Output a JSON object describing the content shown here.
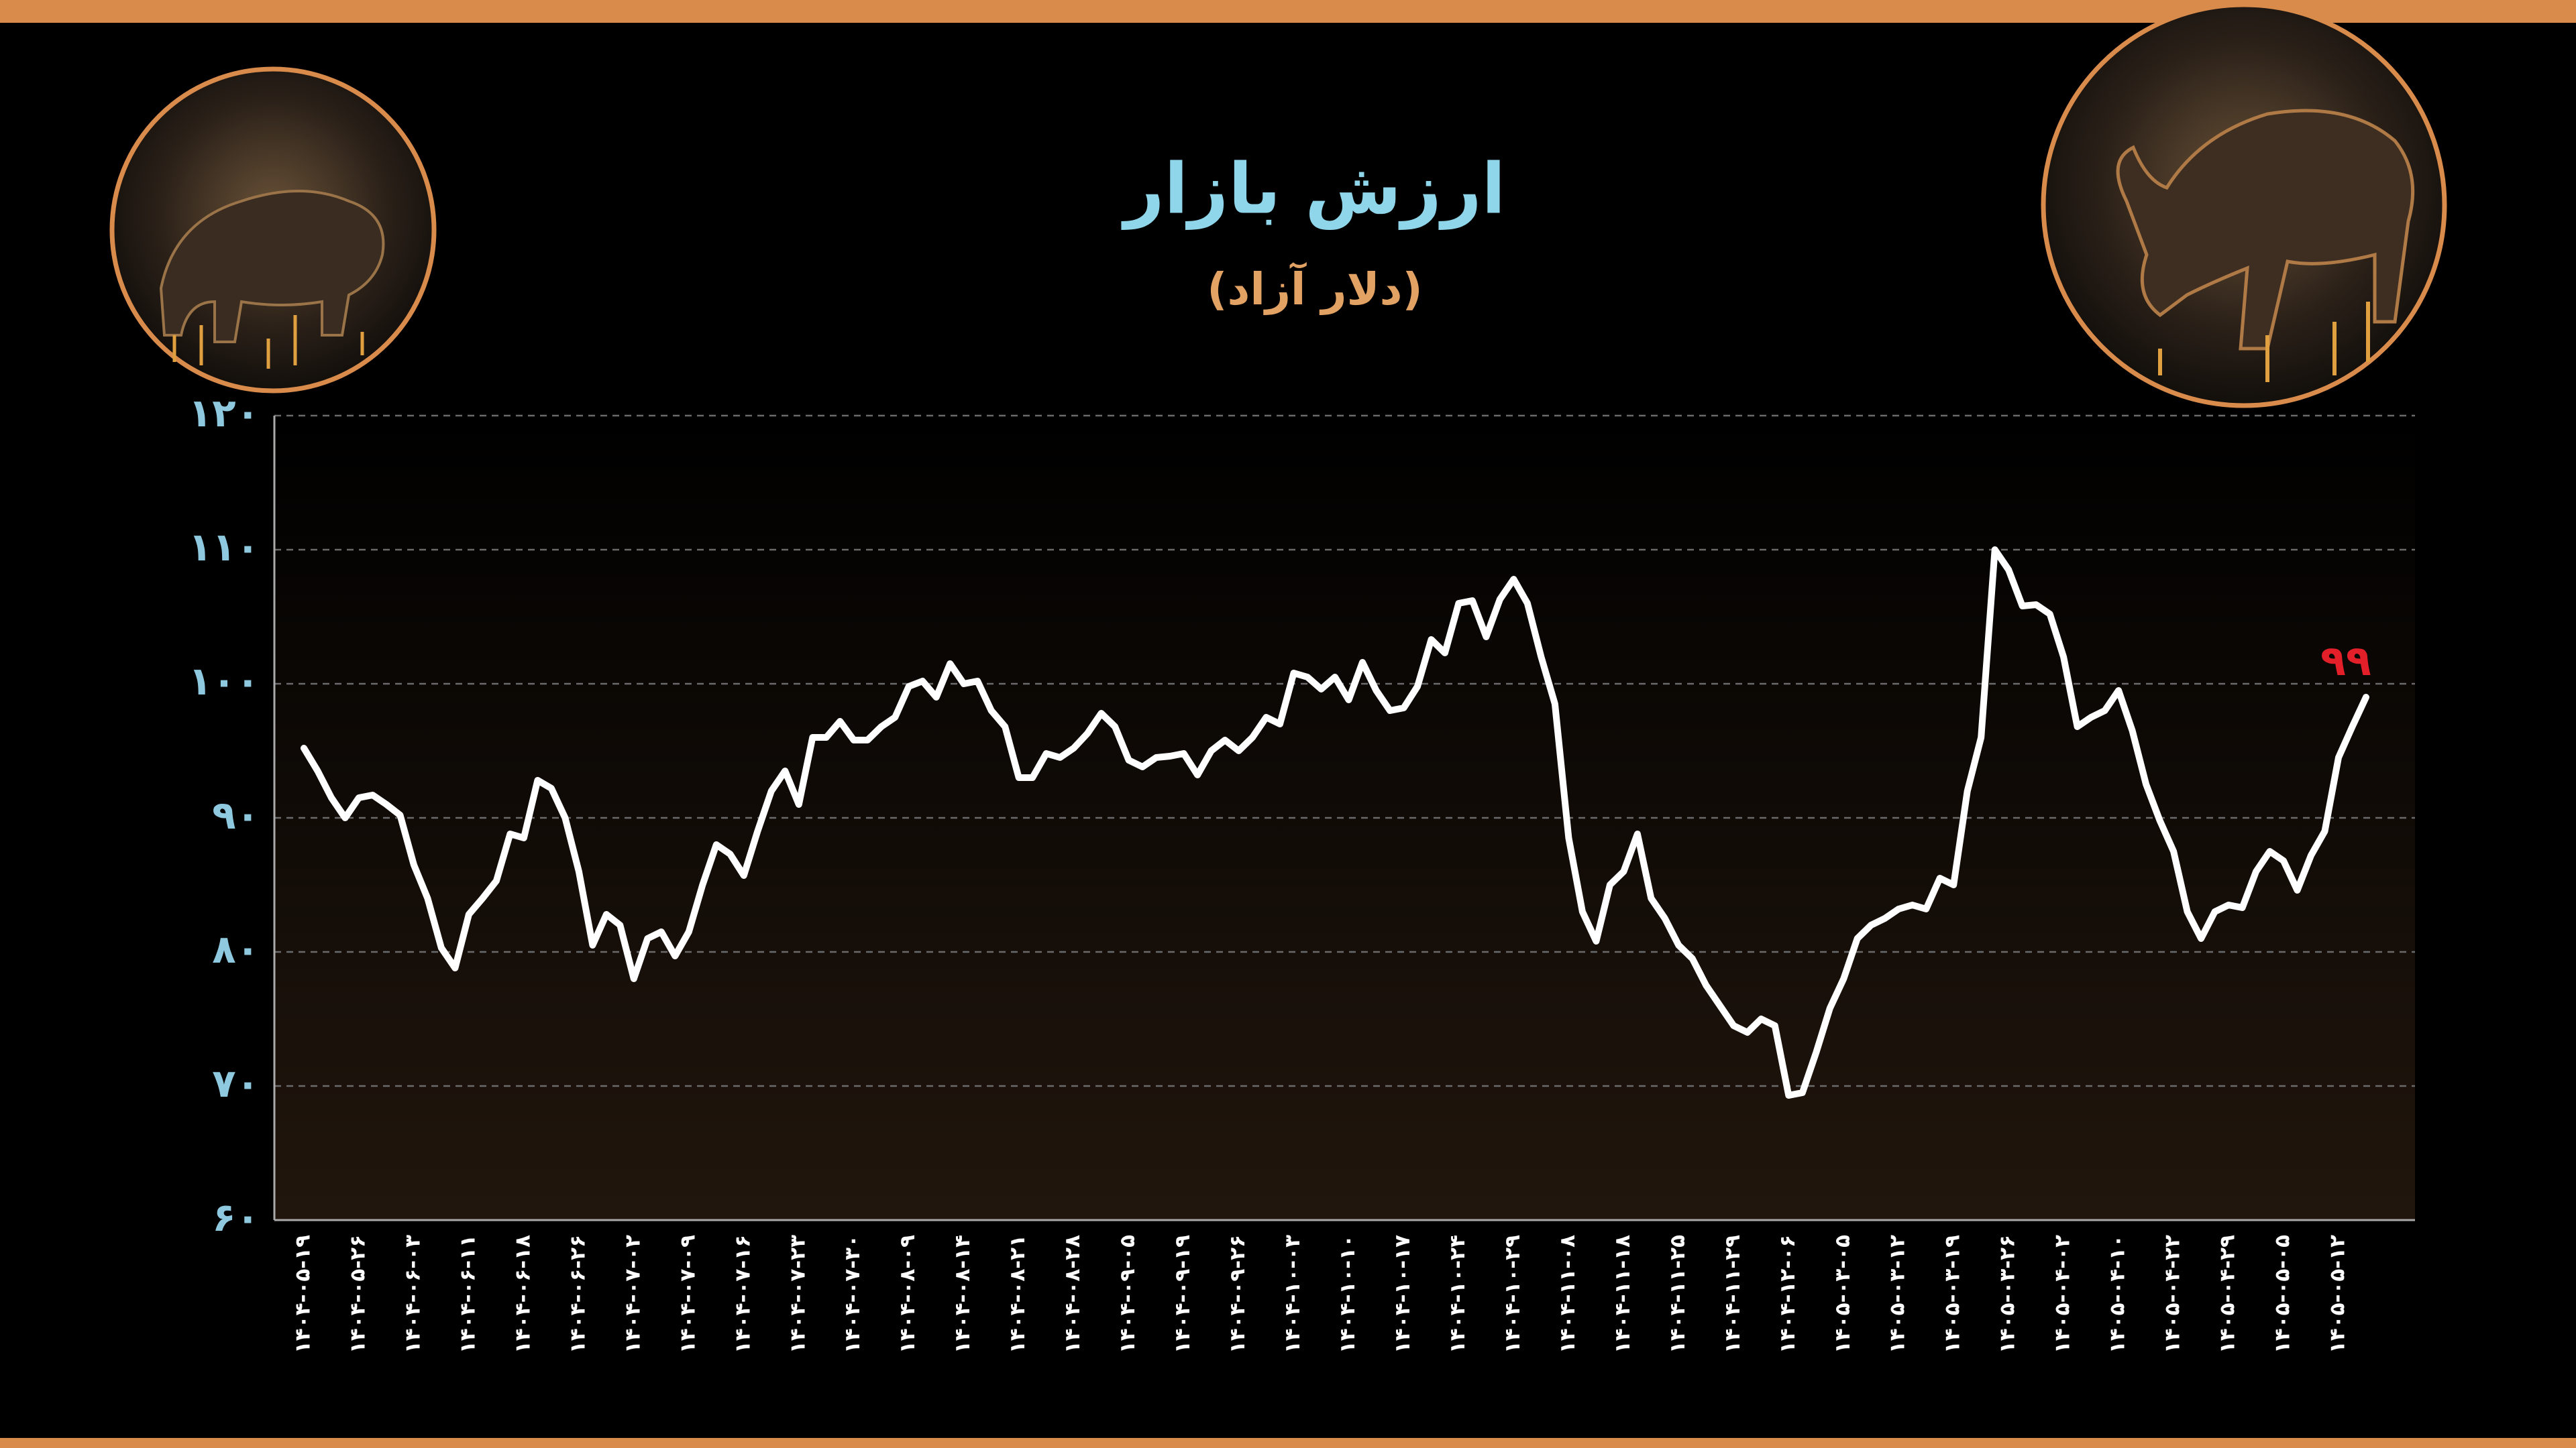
{
  "chart_data": {
    "type": "line",
    "title": "ارزش بازار",
    "subtitle": "(دلار آزاد)",
    "ylim": [
      60,
      120
    ],
    "yticks": [
      {
        "value": 60,
        "label": "۶۰"
      },
      {
        "value": 70,
        "label": "۷۰"
      },
      {
        "value": 80,
        "label": "۸۰"
      },
      {
        "value": 90,
        "label": "۹۰"
      },
      {
        "value": 100,
        "label": "۱۰۰"
      },
      {
        "value": 110,
        "label": "۱۱۰"
      },
      {
        "value": 120,
        "label": "۱۲۰"
      }
    ],
    "grid": true,
    "color": "#ffffff",
    "label_color": "#e3202a",
    "categories": [
      "۱۴۰۴-۰۵-۱۹",
      null,
      null,
      null,
      "۱۴۰۴-۰۵-۲۶",
      null,
      null,
      null,
      "۱۴۰۴-۰۶-۰۳",
      null,
      null,
      null,
      "۱۴۰۴-۰۶-۱۱",
      null,
      null,
      null,
      "۱۴۰۴-۰۶-۱۸",
      null,
      null,
      null,
      "۱۴۰۴-۰۶-۲۶",
      null,
      null,
      null,
      "۱۴۰۴-۰۷-۰۲",
      null,
      null,
      null,
      "۱۴۰۴-۰۷-۰۹",
      null,
      null,
      null,
      "۱۴۰۴-۰۷-۱۶",
      null,
      null,
      null,
      "۱۴۰۴-۰۷-۲۳",
      null,
      null,
      null,
      "۱۴۰۴-۰۷-۳۰",
      null,
      null,
      null,
      "۱۴۰۴-۰۸-۰۹",
      null,
      null,
      null,
      "۱۴۰۴-۰۸-۱۴",
      null,
      null,
      null,
      "۱۴۰۴-۰۸-۲۱",
      null,
      null,
      null,
      "۱۴۰۴-۰۸-۲۸",
      null,
      null,
      null,
      "۱۴۰۴-۰۹-۰۵",
      null,
      null,
      null,
      "۱۴۰۴-۰۹-۱۹",
      null,
      null,
      null,
      "۱۴۰۴-۰۹-۲۶",
      null,
      null,
      null,
      "۱۴۰۴-۱۰-۰۳",
      null,
      null,
      null,
      "۱۴۰۴-۱۰-۱۰",
      null,
      null,
      null,
      "۱۴۰۴-۱۰-۱۷",
      null,
      null,
      null,
      "۱۴۰۴-۱۰-۲۴",
      null,
      null,
      null,
      "۱۴۰۴-۱۰-۲۹",
      null,
      null,
      null,
      "۱۴۰۴-۱۱-۰۸",
      null,
      null,
      null,
      "۱۴۰۴-۱۱-۱۸",
      null,
      null,
      null,
      "۱۴۰۴-۱۱-۲۵",
      null,
      null,
      null,
      "۱۴۰۴-۱۱-۲۹",
      null,
      null,
      null,
      "۱۴۰۴-۱۲-۰۶",
      null,
      null,
      null,
      "۱۴۰۵-۰۳-۰۵",
      null,
      null,
      null,
      "۱۴۰۵-۰۳-۱۲",
      null,
      null,
      null,
      "۱۴۰۵-۰۳-۱۹",
      null,
      null,
      null,
      "۱۴۰۵-۰۳-۲۶",
      null,
      null,
      null,
      "۱۴۰۵-۰۴-۰۲",
      null,
      null,
      null,
      "۱۴۰۵-۰۴-۱۰",
      null,
      null,
      null,
      "۱۴۰۵-۰۴-۲۲",
      null,
      null,
      null,
      "۱۴۰۵-۰۴-۲۹",
      null,
      null,
      null,
      "۱۴۰۵-۰۵-۰۵",
      null,
      null,
      null,
      "۱۴۰۵-۰۵-۱۲",
      null,
      null
    ],
    "values": [
      95.2,
      93.5,
      91.5,
      90.0,
      91.5,
      91.7,
      91.0,
      90.2,
      86.5,
      84.0,
      80.3,
      78.8,
      82.8,
      84.0,
      85.3,
      88.8,
      88.5,
      92.8,
      92.2,
      90.0,
      86.0,
      80.5,
      82.8,
      82.0,
      78.0,
      81.0,
      81.5,
      79.7,
      81.5,
      85.0,
      88.0,
      87.3,
      85.7,
      89.0,
      92.0,
      93.5,
      91.0,
      96.0,
      96.0,
      97.2,
      95.8,
      95.8,
      96.8,
      97.5,
      99.8,
      100.2,
      99.0,
      101.5,
      100.0,
      100.2,
      98.0,
      96.8,
      93.0,
      93.0,
      94.8,
      94.5,
      95.2,
      96.3,
      97.8,
      96.8,
      94.3,
      93.8,
      94.5,
      94.6,
      94.8,
      93.2,
      95.0,
      95.8,
      95.0,
      96.0,
      97.5,
      97.0,
      100.8,
      100.5,
      99.6,
      100.5,
      98.8,
      101.6,
      99.5,
      98.0,
      98.2,
      99.8,
      103.3,
      102.3,
      106.0,
      106.2,
      103.5,
      106.3,
      107.8,
      106.0,
      102.0,
      98.5,
      88.5,
      83.0,
      80.8,
      85.0,
      86.0,
      88.8,
      84.0,
      82.5,
      80.5,
      79.5,
      77.5,
      76.0,
      74.5,
      74.0,
      75.0,
      74.5,
      69.3,
      69.5,
      72.5,
      75.8,
      78.0,
      81.0,
      82.0,
      82.5,
      83.2,
      83.5,
      83.2,
      85.5,
      85.0,
      92.0,
      96.0,
      110.0,
      108.5,
      105.8,
      105.9,
      105.2,
      102.0,
      96.8,
      97.5,
      98.0,
      99.5,
      96.5,
      92.5,
      89.8,
      87.5,
      83.0,
      81.0,
      83.0,
      83.5,
      83.3,
      86.0,
      87.5,
      86.8,
      84.6,
      87.2,
      89.0,
      94.5,
      96.8,
      99
    ],
    "value_labels": [
      null,
      null,
      null,
      null,
      null,
      null,
      null,
      null,
      null,
      null,
      null,
      null,
      null,
      null,
      null,
      null,
      null,
      null,
      null,
      null,
      null,
      null,
      null,
      null,
      null,
      null,
      null,
      null,
      null,
      null,
      null,
      null,
      null,
      null,
      null,
      null,
      null,
      null,
      null,
      null,
      null,
      null,
      null,
      null,
      null,
      null,
      null,
      null,
      null,
      null,
      null,
      null,
      null,
      null,
      null,
      null,
      null,
      null,
      null,
      null,
      null,
      null,
      null,
      null,
      null,
      null,
      null,
      null,
      null,
      null,
      null,
      null,
      null,
      null,
      null,
      null,
      null,
      null,
      null,
      null,
      null,
      null,
      null,
      null,
      null,
      null,
      null,
      null,
      null,
      null,
      null,
      null,
      null,
      null,
      null,
      null,
      null,
      null,
      null,
      null,
      null,
      null,
      null,
      null,
      null,
      null,
      null,
      null,
      null,
      null,
      null,
      null,
      null,
      null,
      null,
      null,
      null,
      null,
      null,
      null,
      null,
      null,
      null,
      null,
      null,
      null,
      null,
      null,
      null,
      null,
      null,
      null,
      null,
      null,
      null,
      null,
      null,
      null,
      null,
      null,
      null,
      null,
      null,
      null,
      null,
      null,
      null,
      null,
      null,
      null,
      "۹۹"
    ]
  }
}
